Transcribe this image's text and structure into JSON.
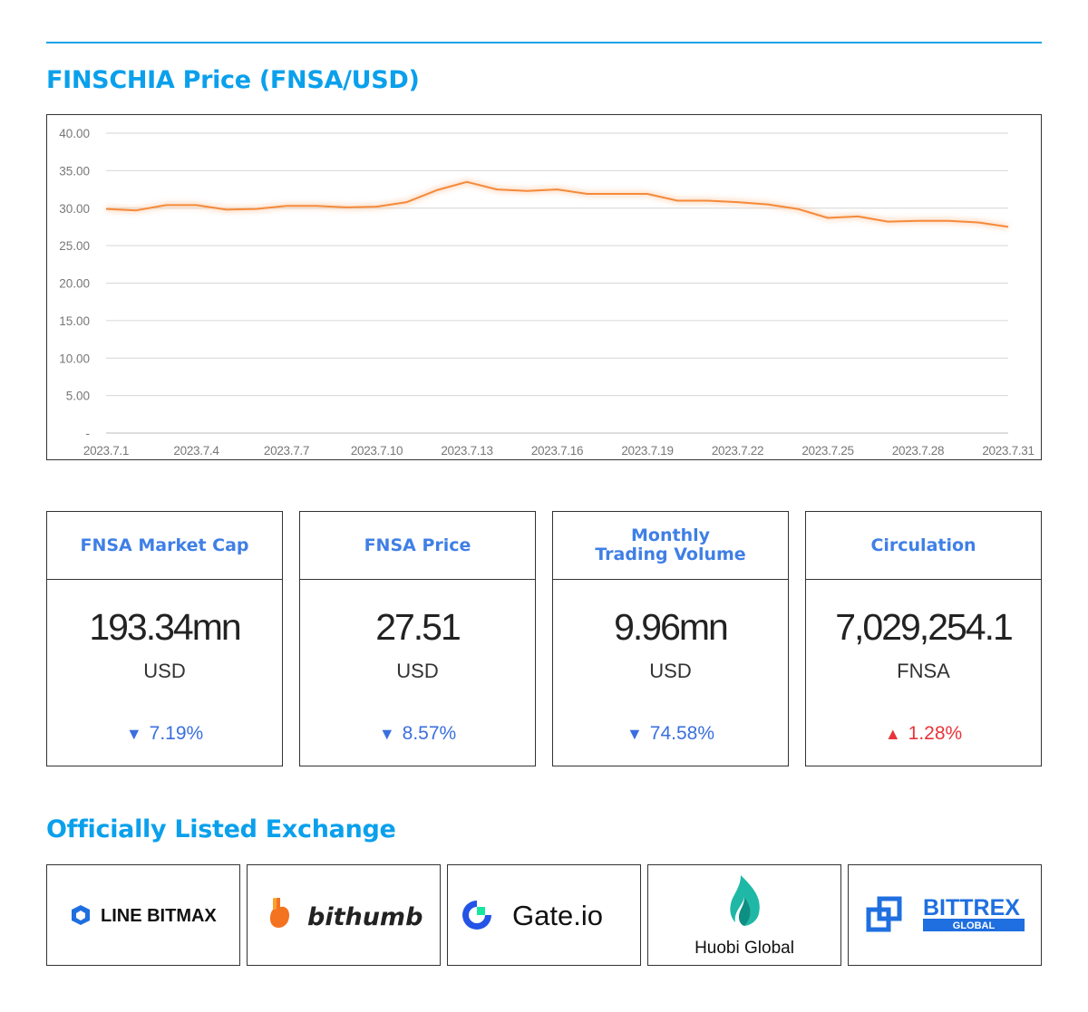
{
  "header": {
    "price_title": "FINSCHIA Price (FNSA/USD)",
    "exchange_title": "Officially Listed Exchange"
  },
  "colors": {
    "accent": "#0aa0ec",
    "card_title": "#3f7fe6",
    "line": "#f58a3a",
    "down": "#3a6fe0",
    "up": "#e8343a"
  },
  "chart_data": {
    "type": "line",
    "ylim": [
      0,
      40
    ],
    "y_ticks": [
      "-",
      "5.00",
      "10.00",
      "15.00",
      "20.00",
      "25.00",
      "30.00",
      "35.00",
      "40.00"
    ],
    "x_tick_labels": [
      "2023.7.1",
      "2023.7.4",
      "2023.7.7",
      "2023.7.10",
      "2023.7.13",
      "2023.7.16",
      "2023.7.19",
      "2023.7.22",
      "2023.7.25",
      "2023.7.28",
      "2023.7.31"
    ],
    "x": [
      "2023.7.1",
      "2023.7.2",
      "2023.7.3",
      "2023.7.4",
      "2023.7.5",
      "2023.7.6",
      "2023.7.7",
      "2023.7.8",
      "2023.7.9",
      "2023.7.10",
      "2023.7.11",
      "2023.7.12",
      "2023.7.13",
      "2023.7.14",
      "2023.7.15",
      "2023.7.16",
      "2023.7.17",
      "2023.7.18",
      "2023.7.19",
      "2023.7.20",
      "2023.7.21",
      "2023.7.22",
      "2023.7.23",
      "2023.7.24",
      "2023.7.25",
      "2023.7.26",
      "2023.7.27",
      "2023.7.28",
      "2023.7.29",
      "2023.7.30",
      "2023.7.31"
    ],
    "series": [
      {
        "values": [
          29.9,
          29.7,
          30.4,
          30.4,
          29.8,
          29.9,
          30.3,
          30.3,
          30.1,
          30.2,
          30.8,
          32.4,
          33.5,
          32.5,
          32.3,
          32.5,
          31.9,
          31.9,
          31.9,
          31.0,
          31.0,
          30.8,
          30.5,
          29.9,
          28.7,
          28.9,
          28.2,
          28.3,
          28.3,
          28.1,
          27.5
        ]
      }
    ],
    "grid": true,
    "legend": "none"
  },
  "stats": [
    {
      "label": "FNSA Market Cap",
      "value": "193.34mn",
      "unit": "USD",
      "arrow": "▼",
      "change": "7.19%",
      "direction": "down"
    },
    {
      "label": "FNSA Price",
      "value": "27.51",
      "unit": "USD",
      "arrow": "▼",
      "change": "8.57%",
      "direction": "down"
    },
    {
      "label": "Monthly\nTrading Volume",
      "value": "9.96mn",
      "unit": "USD",
      "arrow": "▼",
      "change": "74.58%",
      "direction": "down"
    },
    {
      "label": "Circulation",
      "value": "7,029,254.1",
      "unit": "FNSA",
      "arrow": "▲",
      "change": "1.28%",
      "direction": "up"
    }
  ],
  "exchanges": [
    {
      "name": "LINE BITMAX",
      "icon": "line-bitmax-logo"
    },
    {
      "name": "bithumb",
      "icon": "bithumb-logo"
    },
    {
      "name": "Gate.io",
      "icon": "gate-io-logo"
    },
    {
      "name": "Huobi Global",
      "icon": "huobi-logo"
    },
    {
      "name": "BITTREX",
      "sub": "GLOBAL",
      "icon": "bittrex-logo"
    }
  ]
}
